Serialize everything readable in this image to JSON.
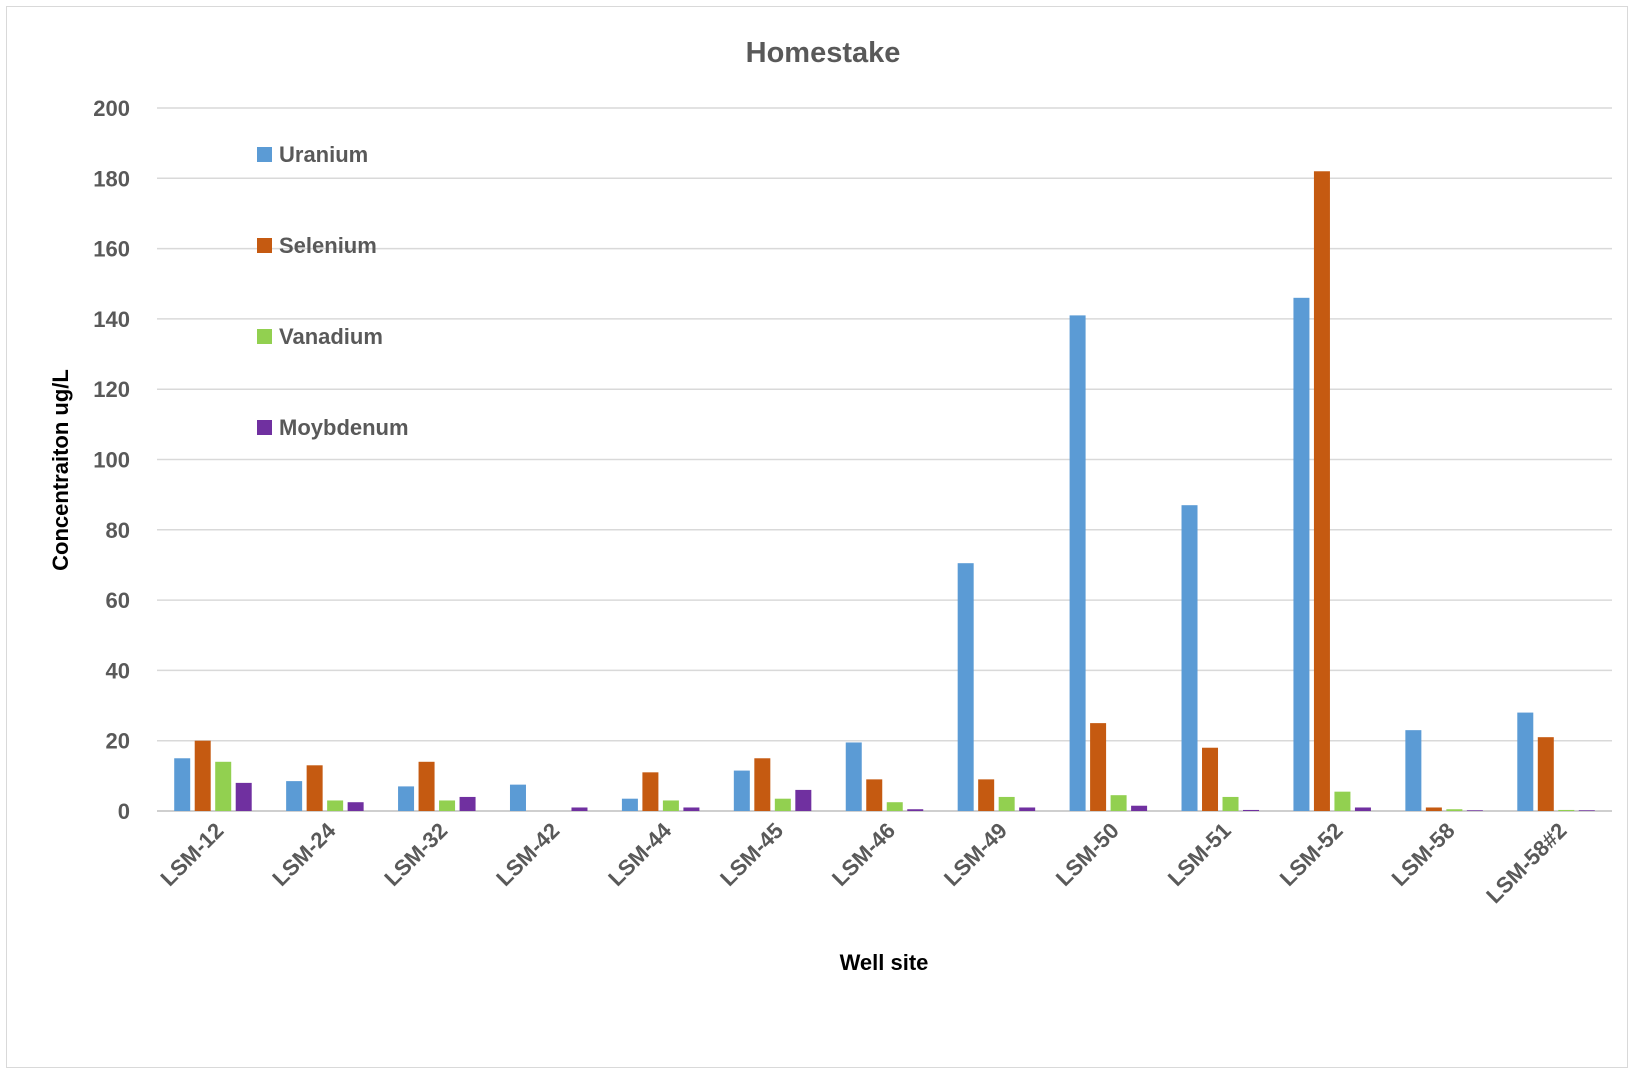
{
  "chart_data": {
    "type": "bar",
    "title": "Homestake",
    "xlabel": "Well site",
    "ylabel": "Concentraiton ug/L",
    "ylim": [
      0,
      200
    ],
    "yticks": [
      "0",
      "20",
      "40",
      "60",
      "80",
      "100",
      "120",
      "140",
      "160",
      "180",
      "200"
    ],
    "grid": true,
    "legend_position": "top-left",
    "categories": [
      "LSM-12",
      "LSM-24",
      "LSM-32",
      "LSM-42",
      "LSM-44",
      "LSM-45",
      "LSM-46",
      "LSM-49",
      "LSM-50",
      "LSM-51",
      "LSM-52",
      "LSM-58",
      "LSM-58#2"
    ],
    "series": [
      {
        "name": "Uranium",
        "color": "#5b9bd5",
        "values": [
          15,
          8.5,
          7,
          7.5,
          3.5,
          11.5,
          19.5,
          70.5,
          141,
          87,
          146,
          23,
          28
        ]
      },
      {
        "name": "Selenium",
        "color": "#c55a11",
        "values": [
          20,
          13,
          14,
          0,
          11,
          15,
          9,
          9,
          25,
          18,
          182,
          1,
          21
        ]
      },
      {
        "name": "Vanadium",
        "color": "#92d050",
        "values": [
          14,
          3,
          3,
          0,
          3,
          3.5,
          2.5,
          4,
          4.5,
          4,
          5.5,
          0.5,
          0.3
        ]
      },
      {
        "name": "Moybdenum",
        "color": "#7030a0",
        "values": [
          8,
          2.5,
          4,
          1,
          1,
          6,
          0.5,
          1,
          1.5,
          0.3,
          1,
          0.2,
          0.2
        ]
      }
    ]
  }
}
